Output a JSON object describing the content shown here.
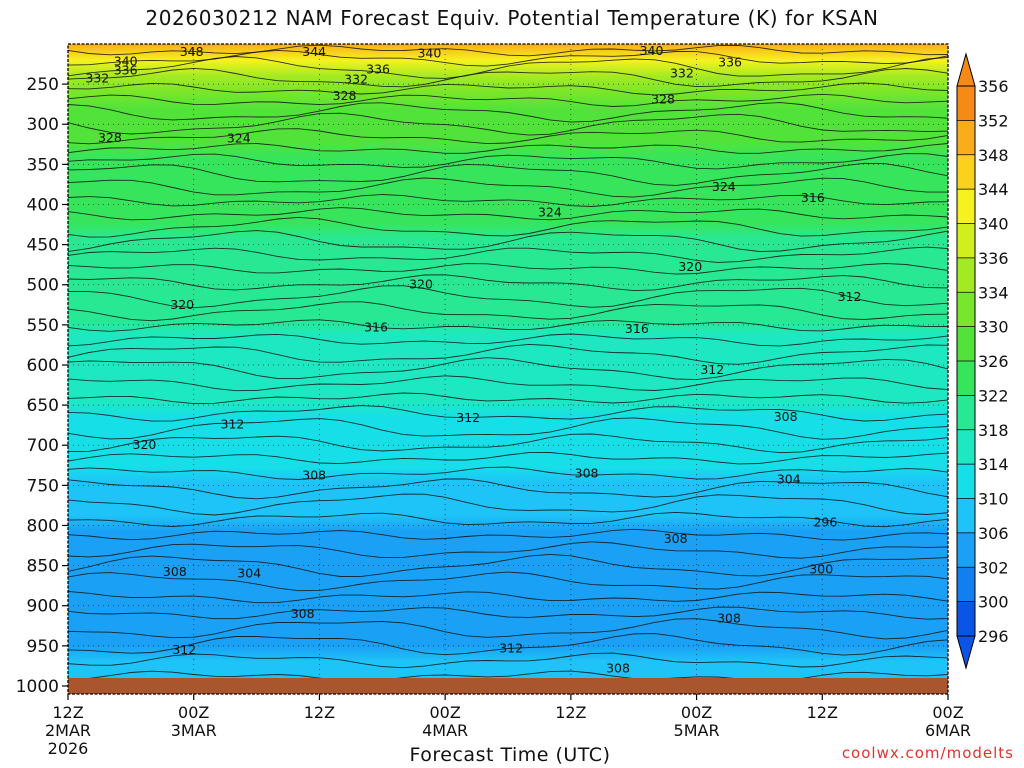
{
  "chart_data": {
    "type": "heatmap",
    "title": "2026030212 NAM Forecast Equiv. Potential Temperature (K) for KSAN",
    "xlabel": "Forecast Time (UTC)",
    "ylabel": "",
    "x_ticks": [
      {
        "hours": 0,
        "lines": [
          "12Z",
          "2MAR",
          "2026"
        ]
      },
      {
        "hours": 12,
        "lines": [
          "00Z",
          "3MAR"
        ]
      },
      {
        "hours": 24,
        "lines": [
          "12Z"
        ]
      },
      {
        "hours": 36,
        "lines": [
          "00Z",
          "4MAR"
        ]
      },
      {
        "hours": 48,
        "lines": [
          "12Z"
        ]
      },
      {
        "hours": 60,
        "lines": [
          "00Z",
          "5MAR"
        ]
      },
      {
        "hours": 72,
        "lines": [
          "12Z"
        ]
      },
      {
        "hours": 84,
        "lines": [
          "00Z",
          "6MAR"
        ]
      }
    ],
    "xlim": [
      0,
      84
    ],
    "y_ticks": [
      250,
      300,
      350,
      400,
      450,
      500,
      550,
      600,
      650,
      700,
      750,
      800,
      850,
      900,
      950,
      1000
    ],
    "ylim_hPa": [
      200,
      1000
    ],
    "ground_band_color": "#a9552d",
    "grid": "dotted",
    "colorbar": {
      "levels": [
        296,
        300,
        302,
        306,
        310,
        314,
        318,
        322,
        326,
        330,
        334,
        336,
        340,
        344,
        348,
        352,
        356
      ],
      "colors": [
        "#0a55e6",
        "#127ff0",
        "#1aa0f5",
        "#1ec3f7",
        "#16dfe8",
        "#1ee8c2",
        "#28e894",
        "#37e55c",
        "#52e33a",
        "#78e62a",
        "#a4ea22",
        "#d0ef1c",
        "#f6f21e",
        "#fad21c",
        "#f9ad1a",
        "#f68a16"
      ],
      "placement": "right"
    },
    "fill_profile": [
      {
        "hPa": 200,
        "K": 348
      },
      {
        "hPa": 240,
        "K": 336
      },
      {
        "hPa": 280,
        "K": 328
      },
      {
        "hPa": 350,
        "K": 325
      },
      {
        "hPa": 400,
        "K": 323
      },
      {
        "hPa": 500,
        "K": 320
      },
      {
        "hPa": 600,
        "K": 316
      },
      {
        "hPa": 700,
        "K": 312
      },
      {
        "hPa": 800,
        "K": 306
      },
      {
        "hPa": 900,
        "K": 304
      },
      {
        "hPa": 1000,
        "K": 308
      }
    ],
    "contour_labels": [
      {
        "text": "348",
        "hours": 11.8,
        "hPa": 210
      },
      {
        "text": "344",
        "hours": 23.5,
        "hPa": 210
      },
      {
        "text": "340",
        "hours": 34.5,
        "hPa": 212
      },
      {
        "text": "340",
        "hours": 55.7,
        "hPa": 209
      },
      {
        "text": "340",
        "hours": 5.5,
        "hPa": 222
      },
      {
        "text": "336",
        "hours": 5.5,
        "hPa": 233
      },
      {
        "text": "336",
        "hours": 29.6,
        "hPa": 232
      },
      {
        "text": "336",
        "hours": 63.2,
        "hPa": 223
      },
      {
        "text": "332",
        "hours": 2.8,
        "hPa": 243
      },
      {
        "text": "332",
        "hours": 27.5,
        "hPa": 244
      },
      {
        "text": "332",
        "hours": 58.6,
        "hPa": 237
      },
      {
        "text": "328",
        "hours": 26.4,
        "hPa": 265
      },
      {
        "text": "328",
        "hours": 56.8,
        "hPa": 269
      },
      {
        "text": "328",
        "hours": 4.0,
        "hPa": 317
      },
      {
        "text": "324",
        "hours": 16.3,
        "hPa": 318
      },
      {
        "text": "324",
        "hours": 62.6,
        "hPa": 378
      },
      {
        "text": "324",
        "hours": 46.0,
        "hPa": 410
      },
      {
        "text": "316",
        "hours": 71.1,
        "hPa": 392
      },
      {
        "text": "320",
        "hours": 59.4,
        "hPa": 478
      },
      {
        "text": "320",
        "hours": 33.7,
        "hPa": 500
      },
      {
        "text": "320",
        "hours": 10.9,
        "hPa": 525
      },
      {
        "text": "312",
        "hours": 74.6,
        "hPa": 515
      },
      {
        "text": "316",
        "hours": 29.4,
        "hPa": 553
      },
      {
        "text": "316",
        "hours": 54.3,
        "hPa": 555
      },
      {
        "text": "312",
        "hours": 61.5,
        "hPa": 606
      },
      {
        "text": "312",
        "hours": 38.2,
        "hPa": 666
      },
      {
        "text": "312",
        "hours": 15.7,
        "hPa": 674
      },
      {
        "text": "308",
        "hours": 68.5,
        "hPa": 665
      },
      {
        "text": "320",
        "hours": 7.3,
        "hPa": 700
      },
      {
        "text": "308",
        "hours": 23.5,
        "hPa": 738
      },
      {
        "text": "308",
        "hours": 49.5,
        "hPa": 735
      },
      {
        "text": "304",
        "hours": 68.8,
        "hPa": 743
      },
      {
        "text": "296",
        "hours": 72.3,
        "hPa": 796
      },
      {
        "text": "308",
        "hours": 58.0,
        "hPa": 817
      },
      {
        "text": "308",
        "hours": 10.2,
        "hPa": 858
      },
      {
        "text": "304",
        "hours": 17.3,
        "hPa": 860
      },
      {
        "text": "300",
        "hours": 71.9,
        "hPa": 855
      },
      {
        "text": "308",
        "hours": 22.4,
        "hPa": 910
      },
      {
        "text": "308",
        "hours": 63.1,
        "hPa": 916
      },
      {
        "text": "312",
        "hours": 11.1,
        "hPa": 955
      },
      {
        "text": "312",
        "hours": 42.3,
        "hPa": 953
      },
      {
        "text": "308",
        "hours": 52.5,
        "hPa": 978
      }
    ]
  },
  "credit": "coolwx.com/modelts"
}
